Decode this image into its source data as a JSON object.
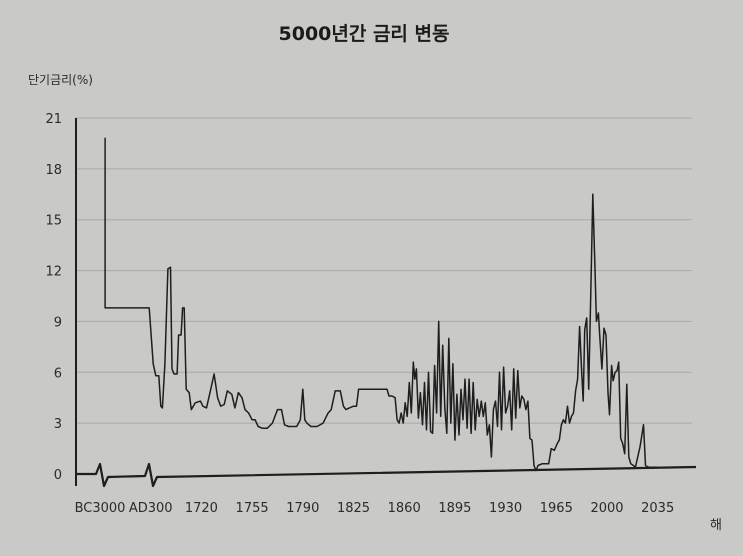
{
  "chart_data": {
    "type": "line",
    "title": "5000년간 금리 변동",
    "ylabel": "단기금리(%)",
    "xlabel": "해",
    "ylim": [
      0,
      21
    ],
    "yticks": [
      0,
      3,
      6,
      9,
      12,
      15,
      18,
      21
    ],
    "x_tick_labels": [
      "BC3000",
      "AD300",
      "1720",
      "1755",
      "1790",
      "1825",
      "1860",
      "1895",
      "1930",
      "1965",
      "2000",
      "2035"
    ],
    "grid": "horizontal",
    "axis_break_marks": 2,
    "line_color": "#1e1e1e",
    "series": [
      {
        "values": [
          [
            0.1,
            19.8
          ],
          [
            0.1,
            9.8
          ],
          [
            0.4,
            9.8
          ],
          [
            0.7,
            9.8
          ],
          [
            0.97,
            9.8
          ],
          [
            1.05,
            6.5
          ],
          [
            1.1,
            5.8
          ],
          [
            1.16,
            5.8
          ],
          [
            1.2,
            4.0
          ],
          [
            1.23,
            3.9
          ],
          [
            1.28,
            6.5
          ],
          [
            1.34,
            12.1
          ],
          [
            1.39,
            12.2
          ],
          [
            1.42,
            6.2
          ],
          [
            1.46,
            5.9
          ],
          [
            1.52,
            5.9
          ],
          [
            1.55,
            8.2
          ],
          [
            1.6,
            8.2
          ],
          [
            1.63,
            9.8
          ],
          [
            1.66,
            9.8
          ],
          [
            1.7,
            5.0
          ],
          [
            1.76,
            4.8
          ],
          [
            1.8,
            3.8
          ],
          [
            1.88,
            4.2
          ],
          [
            1.98,
            4.3
          ],
          [
            2.03,
            4.0
          ],
          [
            2.1,
            3.9
          ],
          [
            2.17,
            4.8
          ],
          [
            2.25,
            5.9
          ],
          [
            2.32,
            4.5
          ],
          [
            2.38,
            4.0
          ],
          [
            2.45,
            4.1
          ],
          [
            2.51,
            4.9
          ],
          [
            2.6,
            4.7
          ],
          [
            2.66,
            3.9
          ],
          [
            2.73,
            4.8
          ],
          [
            2.8,
            4.5
          ],
          [
            2.86,
            3.8
          ],
          [
            2.93,
            3.6
          ],
          [
            3.0,
            3.2
          ],
          [
            3.06,
            3.2
          ],
          [
            3.12,
            2.8
          ],
          [
            3.2,
            2.7
          ],
          [
            3.3,
            2.7
          ],
          [
            3.4,
            3.0
          ],
          [
            3.5,
            3.8
          ],
          [
            3.58,
            3.8
          ],
          [
            3.64,
            2.9
          ],
          [
            3.72,
            2.8
          ],
          [
            3.8,
            2.8
          ],
          [
            3.88,
            2.8
          ],
          [
            3.95,
            3.2
          ],
          [
            4.0,
            5.0
          ],
          [
            4.04,
            3.2
          ],
          [
            4.08,
            3.0
          ],
          [
            4.16,
            2.8
          ],
          [
            4.28,
            2.8
          ],
          [
            4.4,
            3.0
          ],
          [
            4.5,
            3.6
          ],
          [
            4.56,
            3.8
          ],
          [
            4.64,
            4.9
          ],
          [
            4.74,
            4.9
          ],
          [
            4.8,
            4.0
          ],
          [
            4.85,
            3.8
          ],
          [
            4.92,
            3.9
          ],
          [
            5.0,
            4.0
          ],
          [
            5.06,
            4.0
          ],
          [
            5.1,
            5.0
          ],
          [
            5.3,
            5.0
          ],
          [
            5.5,
            5.0
          ],
          [
            5.6,
            5.0
          ],
          [
            5.66,
            5.0
          ],
          [
            5.7,
            4.6
          ],
          [
            5.76,
            4.6
          ],
          [
            5.82,
            4.5
          ],
          [
            5.86,
            3.2
          ],
          [
            5.9,
            3.0
          ],
          [
            5.94,
            3.6
          ],
          [
            5.98,
            3.0
          ],
          [
            6.02,
            4.2
          ],
          [
            6.06,
            3.4
          ],
          [
            6.1,
            5.4
          ],
          [
            6.14,
            3.6
          ],
          [
            6.18,
            6.6
          ],
          [
            6.21,
            5.6
          ],
          [
            6.24,
            6.2
          ],
          [
            6.28,
            3.3
          ],
          [
            6.32,
            4.8
          ],
          [
            6.36,
            2.9
          ],
          [
            6.4,
            5.4
          ],
          [
            6.44,
            2.6
          ],
          [
            6.48,
            6.0
          ],
          [
            6.52,
            2.5
          ],
          [
            6.56,
            2.4
          ],
          [
            6.6,
            6.4
          ],
          [
            6.64,
            3.6
          ],
          [
            6.68,
            9.0
          ],
          [
            6.72,
            3.4
          ],
          [
            6.76,
            7.6
          ],
          [
            6.8,
            3.9
          ],
          [
            6.84,
            2.4
          ],
          [
            6.88,
            8.0
          ],
          [
            6.92,
            3.0
          ],
          [
            6.96,
            6.5
          ],
          [
            7.0,
            2.0
          ],
          [
            7.04,
            4.7
          ],
          [
            7.08,
            2.3
          ],
          [
            7.12,
            5.0
          ],
          [
            7.16,
            3.2
          ],
          [
            7.2,
            5.6
          ],
          [
            7.24,
            2.7
          ],
          [
            7.28,
            5.6
          ],
          [
            7.32,
            2.4
          ],
          [
            7.36,
            5.4
          ],
          [
            7.4,
            2.6
          ],
          [
            7.44,
            4.4
          ],
          [
            7.48,
            3.4
          ],
          [
            7.52,
            4.3
          ],
          [
            7.56,
            3.4
          ],
          [
            7.6,
            4.2
          ],
          [
            7.64,
            2.3
          ],
          [
            7.68,
            2.9
          ],
          [
            7.72,
            1.0
          ],
          [
            7.76,
            3.8
          ],
          [
            7.8,
            4.3
          ],
          [
            7.84,
            2.8
          ],
          [
            7.88,
            6.0
          ],
          [
            7.92,
            2.6
          ],
          [
            7.96,
            6.3
          ],
          [
            8.0,
            3.6
          ],
          [
            8.04,
            4.0
          ],
          [
            8.08,
            4.9
          ],
          [
            8.12,
            2.6
          ],
          [
            8.16,
            6.2
          ],
          [
            8.2,
            3.3
          ],
          [
            8.24,
            6.1
          ],
          [
            8.28,
            3.9
          ],
          [
            8.32,
            4.6
          ],
          [
            8.36,
            4.4
          ],
          [
            8.4,
            3.8
          ],
          [
            8.44,
            4.3
          ],
          [
            8.48,
            2.1
          ],
          [
            8.52,
            2.0
          ],
          [
            8.56,
            0.5
          ],
          [
            8.6,
            0.2
          ],
          [
            8.64,
            0.5
          ],
          [
            8.72,
            0.6
          ],
          [
            8.85,
            0.6
          ],
          [
            8.9,
            1.5
          ],
          [
            8.96,
            1.4
          ],
          [
            9.02,
            1.8
          ],
          [
            9.06,
            2.0
          ],
          [
            9.1,
            2.9
          ],
          [
            9.14,
            3.2
          ],
          [
            9.18,
            3.0
          ],
          [
            9.22,
            4.0
          ],
          [
            9.26,
            3.0
          ],
          [
            9.3,
            3.4
          ],
          [
            9.34,
            3.6
          ],
          [
            9.38,
            4.9
          ],
          [
            9.42,
            5.6
          ],
          [
            9.46,
            8.7
          ],
          [
            9.5,
            6.0
          ],
          [
            9.53,
            4.3
          ],
          [
            9.56,
            8.5
          ],
          [
            9.6,
            9.2
          ],
          [
            9.64,
            5.0
          ],
          [
            9.68,
            10.7
          ],
          [
            9.72,
            16.5
          ],
          [
            9.76,
            12.5
          ],
          [
            9.79,
            9.0
          ],
          [
            9.83,
            9.5
          ],
          [
            9.86,
            8.0
          ],
          [
            9.9,
            6.2
          ],
          [
            9.94,
            8.6
          ],
          [
            9.98,
            8.2
          ],
          [
            10.02,
            4.8
          ],
          [
            10.05,
            3.5
          ],
          [
            10.09,
            6.4
          ],
          [
            10.12,
            5.5
          ],
          [
            10.16,
            6.0
          ],
          [
            10.2,
            6.1
          ],
          [
            10.23,
            6.6
          ],
          [
            10.27,
            2.1
          ],
          [
            10.31,
            1.8
          ],
          [
            10.35,
            1.2
          ],
          [
            10.39,
            5.3
          ],
          [
            10.43,
            1.0
          ],
          [
            10.47,
            0.6
          ],
          [
            10.52,
            0.5
          ],
          [
            10.56,
            0.4
          ],
          [
            10.65,
            1.6
          ],
          [
            10.72,
            2.9
          ],
          [
            10.76,
            0.5
          ],
          [
            10.82,
            0.4
          ],
          [
            11.0,
            0.4
          ]
        ]
      }
    ]
  }
}
